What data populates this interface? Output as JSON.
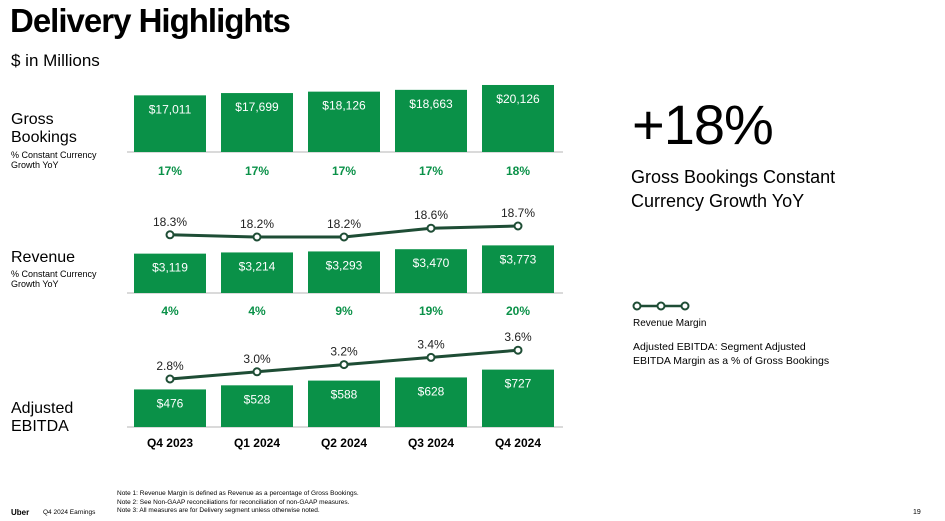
{
  "title": "Delivery Highlights",
  "subtitle": "$ in Millions",
  "rows": {
    "gross": {
      "label_line1": "Gross",
      "label_line2": "Bookings",
      "sub_line1": "% Constant Currency",
      "sub_line2": "Growth YoY"
    },
    "revenue": {
      "label": "Revenue",
      "sub_line1": "% Constant Currency",
      "sub_line2": "Growth YoY"
    },
    "ebitda": {
      "label_line1": "Adjusted",
      "label_line2": "EBITDA"
    }
  },
  "highlight": {
    "value": "+18%",
    "caption_line1": "Gross Bookings Constant",
    "caption_line2": "Currency Growth YoY"
  },
  "legend": {
    "label": "Revenue Margin",
    "note_line1": "Adjusted EBITDA: Segment Adjusted",
    "note_line2": "EBITDA Margin as a % of Gross Bookings"
  },
  "footer": {
    "brand": "Uber",
    "source": "Q4 2024 Earnings",
    "notes": [
      "Note 1: Revenue Margin is defined as Revenue as a percentage of Gross Bookings.",
      "Note 2: See Non-GAAP reconciliations for reconciliation of non-GAAP measures.",
      "Note 3: All measures are for Delivery segment unless otherwise noted."
    ],
    "page": "19"
  },
  "colors": {
    "bar": "#0a9148",
    "line": "#1e4d35",
    "growth": "#0a9148"
  },
  "chart_data": [
    {
      "type": "bar",
      "name": "Gross Bookings",
      "categories": [
        "Q4 2023",
        "Q1 2024",
        "Q2 2024",
        "Q3 2024",
        "Q4 2024"
      ],
      "values": [
        17011,
        17699,
        18126,
        18663,
        20126
      ],
      "value_labels": [
        "$17,011",
        "$17,699",
        "$18,126",
        "$18,663",
        "$20,126"
      ],
      "growth_labels": [
        "17%",
        "17%",
        "17%",
        "17%",
        "18%"
      ]
    },
    {
      "type": "bar",
      "name": "Revenue",
      "categories": [
        "Q4 2023",
        "Q1 2024",
        "Q2 2024",
        "Q3 2024",
        "Q4 2024"
      ],
      "values": [
        3119,
        3214,
        3293,
        3470,
        3773
      ],
      "value_labels": [
        "$3,119",
        "$3,214",
        "$3,293",
        "$3,470",
        "$3,773"
      ],
      "growth_labels": [
        "4%",
        "4%",
        "9%",
        "19%",
        "20%"
      ],
      "margin_series": {
        "name": "Revenue Margin",
        "values": [
          18.3,
          18.2,
          18.2,
          18.6,
          18.7
        ],
        "labels": [
          "18.3%",
          "18.2%",
          "18.2%",
          "18.6%",
          "18.7%"
        ]
      }
    },
    {
      "type": "bar",
      "name": "Adjusted EBITDA",
      "categories": [
        "Q4 2023",
        "Q1 2024",
        "Q2 2024",
        "Q3 2024",
        "Q4 2024"
      ],
      "values": [
        476,
        528,
        588,
        628,
        727
      ],
      "value_labels": [
        "$476",
        "$528",
        "$588",
        "$628",
        "$727"
      ],
      "margin_series": {
        "name": "Adjusted EBITDA Margin",
        "values": [
          2.8,
          3.0,
          3.2,
          3.4,
          3.6
        ],
        "labels": [
          "2.8%",
          "3.0%",
          "3.2%",
          "3.4%",
          "3.6%"
        ]
      }
    }
  ]
}
